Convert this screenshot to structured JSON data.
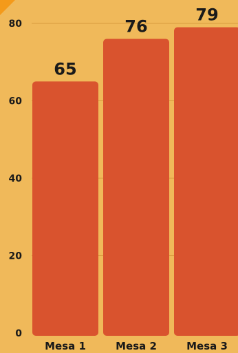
{
  "chart_data": {
    "type": "bar",
    "categories": [
      "Mesa 1",
      "Mesa 2",
      "Mesa 3"
    ],
    "values": [
      65,
      76,
      79
    ],
    "data_labels": [
      "65",
      "76",
      "79"
    ],
    "ylim": [
      0,
      80
    ],
    "yticks": [
      0,
      20,
      40,
      60,
      80
    ],
    "ytick_labels": [
      "0",
      "20",
      "40",
      "60",
      "80"
    ],
    "grid": true,
    "legend": "none",
    "colors": {
      "background": "#F0B95A",
      "bar": "#D9532E",
      "grid": "#D89A3E",
      "corner_accent": "#F49A1A",
      "text": "#1a1a1a"
    }
  }
}
